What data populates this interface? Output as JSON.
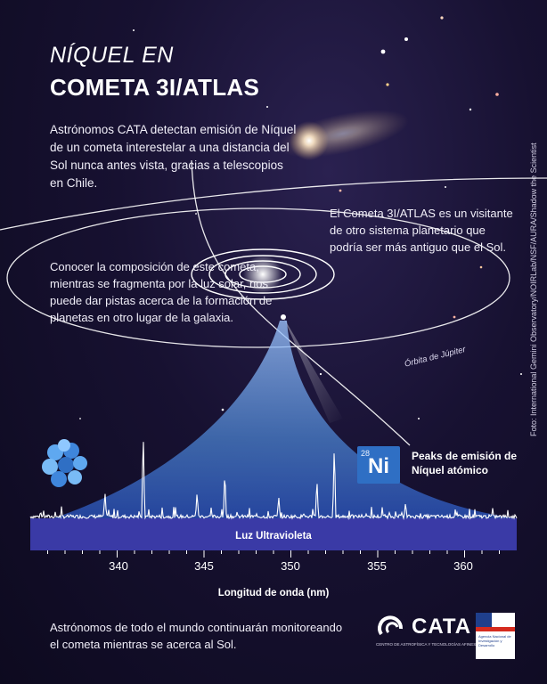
{
  "title": {
    "line1": "NÍQUEL EN",
    "line2": "COMETA 3I/ATLAS"
  },
  "intro_text": "Astrónomos CATA detectan emisión de Níquel de un cometa interestelar a una distancia del Sol nunca antes vista, gracias a telescopios en Chile.",
  "visitor_text": "El Cometa 3I/ATLAS es un visitante de otro sistema planetario que podría ser más antiguo que el Sol.",
  "composition_text": "Conocer la composición de este cometa, mientras se fragmenta por la luz solar, nos puede dar pistas acerca de la formación de planetas en otro lugar de la galaxia.",
  "orbit_label": "Órbita de Júpiter",
  "photo_credit": "Foto: International Gemini Observatory/NOIRLab/NSF/AURA/Shadow the Scientist",
  "element": {
    "number": "28",
    "symbol": "Ni"
  },
  "peaks_label": "Peaks de emisión de Níquel atómico",
  "band_label": "Luz Ultravioleta",
  "axis": {
    "xlabel": "Longitud de onda (nm)",
    "ticks": [
      "340",
      "345",
      "350",
      "355",
      "360"
    ],
    "range": [
      335,
      363
    ]
  },
  "spectrum": {
    "strong_peaks_nm": [
      341.5,
      352.5,
      346.2,
      351.5,
      339.3,
      344.6,
      349.3,
      356.6
    ],
    "strong_peak_heights": [
      1.0,
      0.85,
      0.55,
      0.45,
      0.3,
      0.3,
      0.25,
      0.18
    ]
  },
  "closing_text": "Astrónomos de todo el mundo continuarán monitoreando el cometa mientras se acerca al Sol.",
  "logos": {
    "cata_name": "CATA",
    "cata_subtitle": "CENTRO DE ASTROFÍSICA Y TECNOLOGÍAS AFINES",
    "gov_text": "Agencia Nacional de Investigación y Desarrollo"
  },
  "colors": {
    "accent_blue": "#2f6fc4",
    "band": "#3a3aa6",
    "background": "#171131"
  }
}
